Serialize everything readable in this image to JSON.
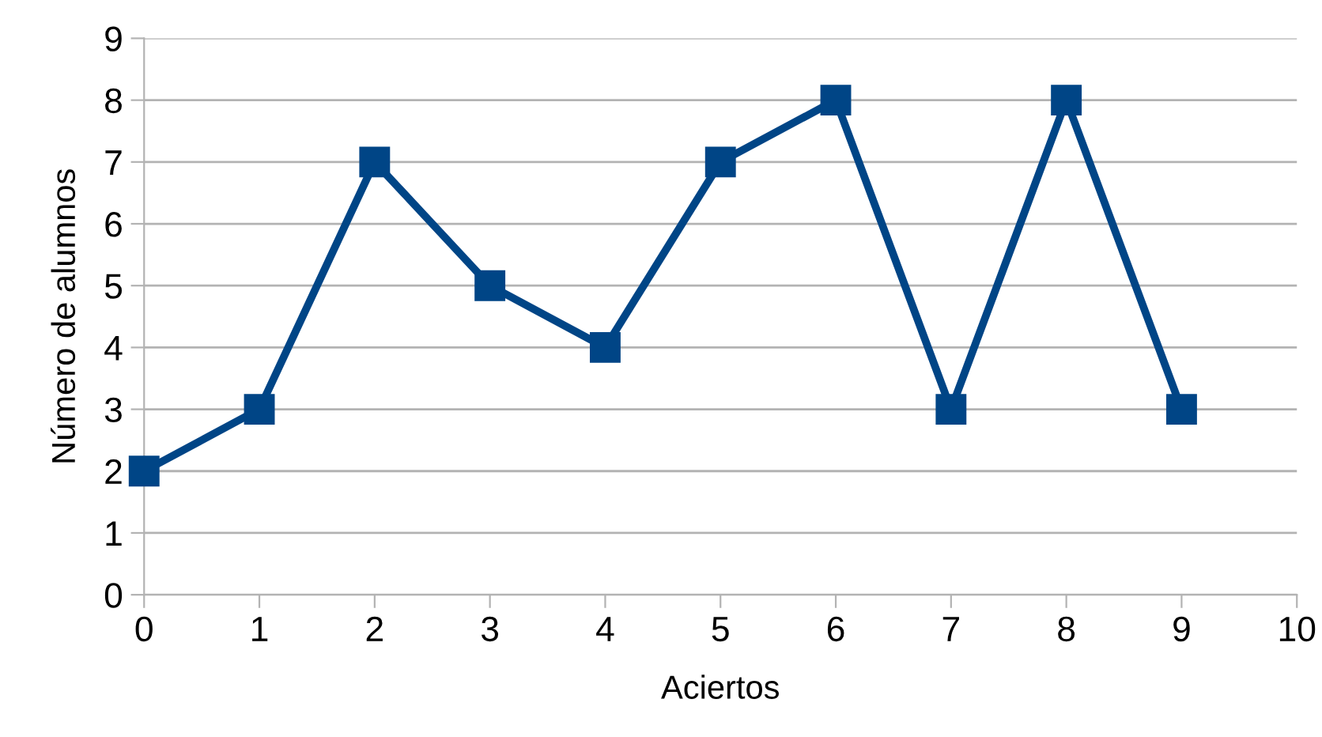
{
  "chart_data": {
    "type": "line",
    "xlabel": "Aciertos",
    "ylabel": "Número de alumnos",
    "x": [
      0,
      1,
      2,
      3,
      4,
      5,
      6,
      7,
      8,
      9
    ],
    "series": [
      {
        "color": "#004586",
        "values": [
          2,
          3,
          7,
          5,
          4,
          7,
          8,
          3,
          8,
          3
        ]
      }
    ],
    "xlim": [
      0,
      10
    ],
    "ylim": [
      0,
      9
    ],
    "xticks": [
      0,
      1,
      2,
      3,
      4,
      5,
      6,
      7,
      8,
      9,
      10
    ],
    "yticks": [
      0,
      1,
      2,
      3,
      4,
      5,
      6,
      7,
      8,
      9
    ],
    "grid": "y",
    "marker": "square",
    "line_style": "solid"
  }
}
